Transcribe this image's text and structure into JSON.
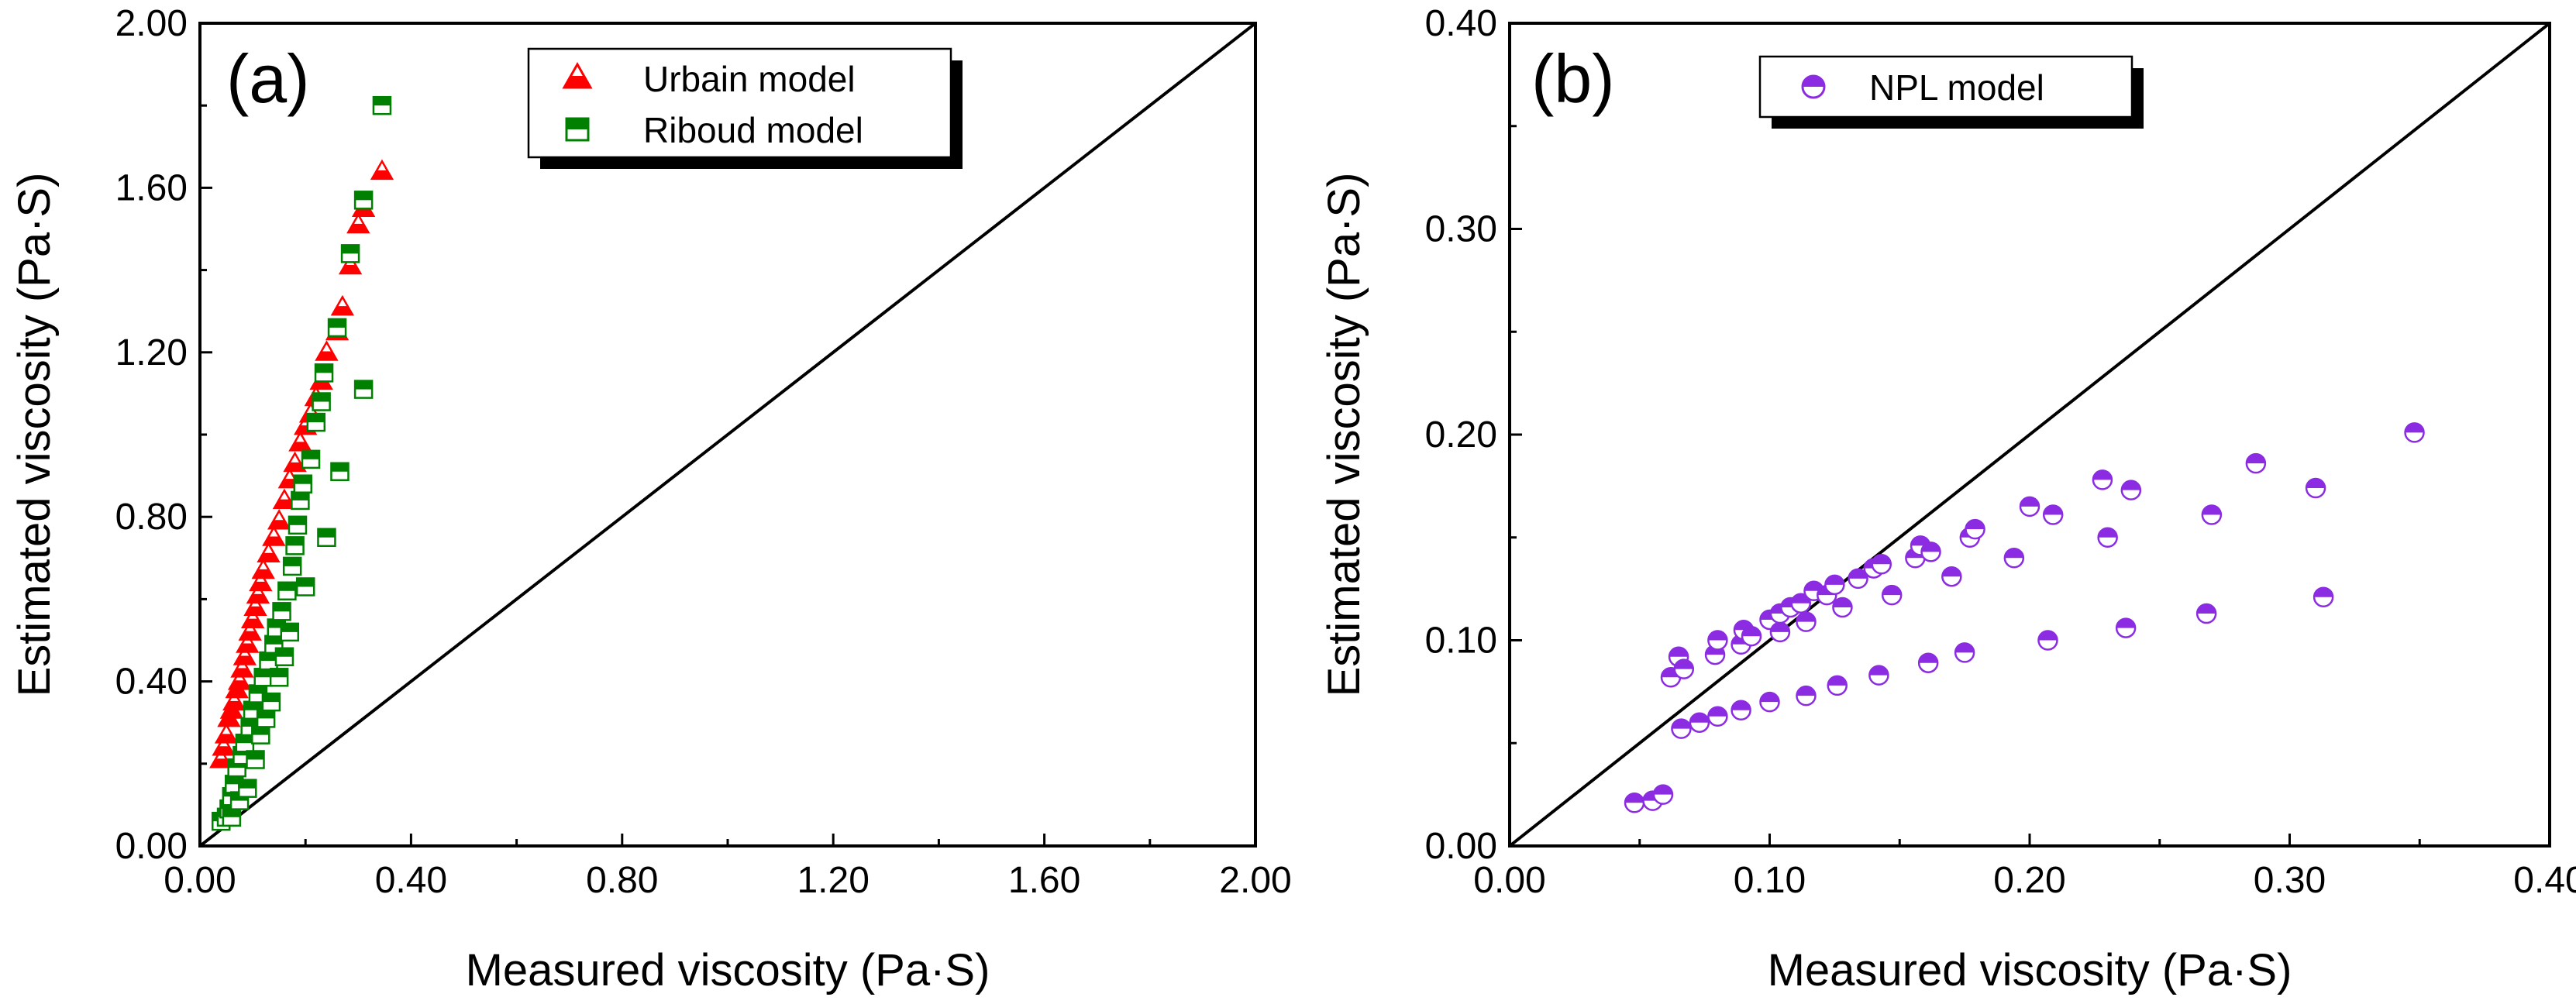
{
  "colors": {
    "urbain": "#ff0000",
    "riboud": "#008000",
    "npl": "#8b2be2",
    "axis": "#000000"
  },
  "chart_data": [
    {
      "type": "scatter",
      "panel_label": "(a)",
      "xlabel": "Measured viscosity (Pa·S)",
      "ylabel": "Estimated viscosity (Pa·S)",
      "xlim": [
        0,
        2.0
      ],
      "ylim": [
        0,
        2.0
      ],
      "xticks": [
        "0.00",
        "0.40",
        "0.80",
        "1.20",
        "1.60",
        "2.00"
      ],
      "yticks": [
        "0.00",
        "0.40",
        "0.80",
        "1.20",
        "1.60",
        "2.00"
      ],
      "grid": false,
      "legend_position": "top-center",
      "reference_line": "y = x",
      "series": [
        {
          "name": "Urbain model",
          "marker": "triangle-half",
          "color": "#ff0000",
          "points": [
            [
              0.04,
              0.21
            ],
            [
              0.045,
              0.24
            ],
            [
              0.05,
              0.27
            ],
            [
              0.055,
              0.31
            ],
            [
              0.06,
              0.33
            ],
            [
              0.065,
              0.35
            ],
            [
              0.07,
              0.38
            ],
            [
              0.075,
              0.4
            ],
            [
              0.08,
              0.43
            ],
            [
              0.085,
              0.46
            ],
            [
              0.09,
              0.49
            ],
            [
              0.095,
              0.52
            ],
            [
              0.1,
              0.55
            ],
            [
              0.105,
              0.58
            ],
            [
              0.11,
              0.61
            ],
            [
              0.115,
              0.64
            ],
            [
              0.12,
              0.67
            ],
            [
              0.13,
              0.71
            ],
            [
              0.14,
              0.75
            ],
            [
              0.15,
              0.79
            ],
            [
              0.16,
              0.84
            ],
            [
              0.17,
              0.89
            ],
            [
              0.18,
              0.93
            ],
            [
              0.19,
              0.98
            ],
            [
              0.2,
              1.02
            ],
            [
              0.21,
              1.05
            ],
            [
              0.22,
              1.09
            ],
            [
              0.23,
              1.13
            ],
            [
              0.24,
              1.2
            ],
            [
              0.26,
              1.25
            ],
            [
              0.27,
              1.31
            ],
            [
              0.285,
              1.41
            ],
            [
              0.3,
              1.51
            ],
            [
              0.31,
              1.55
            ],
            [
              0.345,
              1.64
            ]
          ]
        },
        {
          "name": "Riboud model",
          "marker": "square-half",
          "color": "#008000",
          "points": [
            [
              0.04,
              0.06
            ],
            [
              0.05,
              0.07
            ],
            [
              0.055,
              0.09
            ],
            [
              0.06,
              0.07
            ],
            [
              0.06,
              0.12
            ],
            [
              0.065,
              0.15
            ],
            [
              0.07,
              0.19
            ],
            [
              0.075,
              0.11
            ],
            [
              0.08,
              0.22
            ],
            [
              0.085,
              0.25
            ],
            [
              0.09,
              0.14
            ],
            [
              0.095,
              0.29
            ],
            [
              0.1,
              0.33
            ],
            [
              0.105,
              0.21
            ],
            [
              0.11,
              0.37
            ],
            [
              0.115,
              0.27
            ],
            [
              0.12,
              0.41
            ],
            [
              0.125,
              0.31
            ],
            [
              0.13,
              0.45
            ],
            [
              0.135,
              0.35
            ],
            [
              0.14,
              0.49
            ],
            [
              0.145,
              0.53
            ],
            [
              0.15,
              0.41
            ],
            [
              0.155,
              0.57
            ],
            [
              0.16,
              0.46
            ],
            [
              0.165,
              0.62
            ],
            [
              0.17,
              0.52
            ],
            [
              0.175,
              0.68
            ],
            [
              0.18,
              0.73
            ],
            [
              0.185,
              0.78
            ],
            [
              0.19,
              0.84
            ],
            [
              0.195,
              0.88
            ],
            [
              0.2,
              0.63
            ],
            [
              0.21,
              0.94
            ],
            [
              0.22,
              1.03
            ],
            [
              0.23,
              1.08
            ],
            [
              0.235,
              1.15
            ],
            [
              0.24,
              0.75
            ],
            [
              0.26,
              1.26
            ],
            [
              0.265,
              0.91
            ],
            [
              0.285,
              1.44
            ],
            [
              0.31,
              1.11
            ],
            [
              0.31,
              1.57
            ],
            [
              0.345,
              1.8
            ]
          ]
        }
      ]
    },
    {
      "type": "scatter",
      "panel_label": "(b)",
      "xlabel": "Measured viscosity (Pa·S)",
      "ylabel": "Estimated viscosity (Pa·S)",
      "xlim": [
        0,
        0.4
      ],
      "ylim": [
        0,
        0.4
      ],
      "xticks": [
        "0.00",
        "0.10",
        "0.20",
        "0.30",
        "0.40"
      ],
      "yticks": [
        "0.00",
        "0.10",
        "0.20",
        "0.30",
        "0.40"
      ],
      "grid": false,
      "legend_position": "top-center",
      "reference_line": "y = x",
      "series": [
        {
          "name": "NPL model",
          "marker": "circle-half",
          "color": "#8b2be2",
          "points": [
            [
              0.048,
              0.021
            ],
            [
              0.055,
              0.022
            ],
            [
              0.059,
              0.025
            ],
            [
              0.062,
              0.082
            ],
            [
              0.065,
              0.092
            ],
            [
              0.066,
              0.057
            ],
            [
              0.067,
              0.086
            ],
            [
              0.073,
              0.06
            ],
            [
              0.079,
              0.093
            ],
            [
              0.08,
              0.063
            ],
            [
              0.08,
              0.1
            ],
            [
              0.089,
              0.066
            ],
            [
              0.089,
              0.098
            ],
            [
              0.09,
              0.105
            ],
            [
              0.093,
              0.102
            ],
            [
              0.1,
              0.07
            ],
            [
              0.1,
              0.11
            ],
            [
              0.104,
              0.104
            ],
            [
              0.104,
              0.113
            ],
            [
              0.108,
              0.116
            ],
            [
              0.112,
              0.118
            ],
            [
              0.114,
              0.073
            ],
            [
              0.114,
              0.109
            ],
            [
              0.117,
              0.124
            ],
            [
              0.122,
              0.122
            ],
            [
              0.125,
              0.127
            ],
            [
              0.126,
              0.078
            ],
            [
              0.128,
              0.116
            ],
            [
              0.134,
              0.13
            ],
            [
              0.14,
              0.135
            ],
            [
              0.142,
              0.083
            ],
            [
              0.143,
              0.137
            ],
            [
              0.147,
              0.122
            ],
            [
              0.156,
              0.14
            ],
            [
              0.158,
              0.146
            ],
            [
              0.161,
              0.089
            ],
            [
              0.162,
              0.143
            ],
            [
              0.17,
              0.131
            ],
            [
              0.175,
              0.094
            ],
            [
              0.177,
              0.15
            ],
            [
              0.179,
              0.154
            ],
            [
              0.194,
              0.14
            ],
            [
              0.2,
              0.165
            ],
            [
              0.207,
              0.1
            ],
            [
              0.209,
              0.161
            ],
            [
              0.228,
              0.178
            ],
            [
              0.23,
              0.15
            ],
            [
              0.237,
              0.106
            ],
            [
              0.239,
              0.173
            ],
            [
              0.268,
              0.113
            ],
            [
              0.27,
              0.161
            ],
            [
              0.287,
              0.186
            ],
            [
              0.31,
              0.174
            ],
            [
              0.313,
              0.121
            ],
            [
              0.348,
              0.201
            ]
          ]
        }
      ]
    }
  ]
}
